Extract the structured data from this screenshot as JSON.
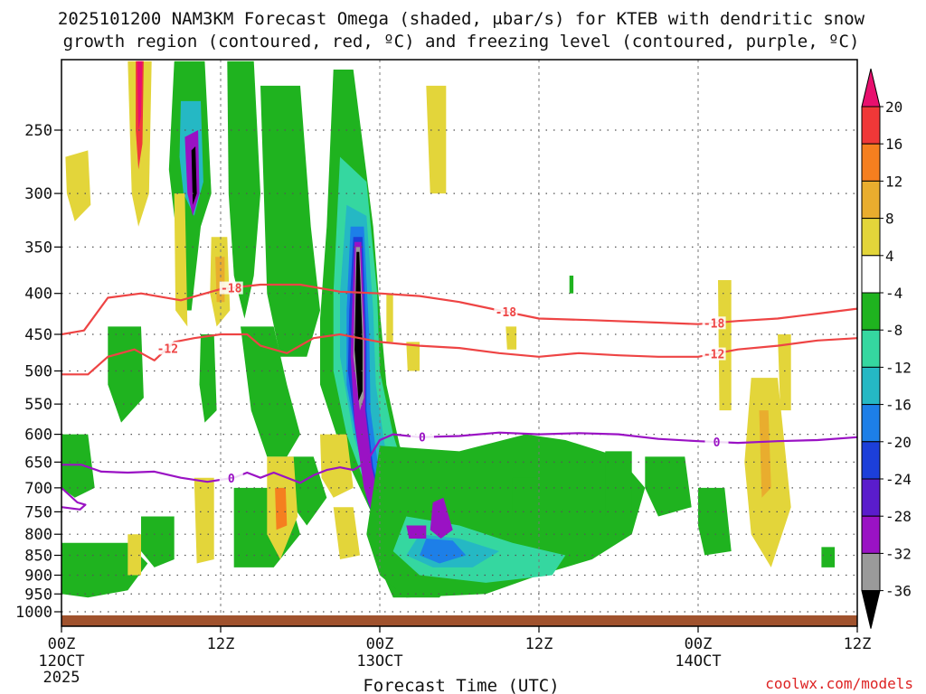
{
  "chart_data": {
    "type": "heatmap",
    "title_line1": "2025101200 NAM3KM Forecast Omega (shaded, μbar/s) for KTEB with dendritic snow",
    "title_line2": "growth region (contoured, red, ºC) and freezing level (contoured, purple, ºC)",
    "xlabel": "Forecast Time (UTC)",
    "ylabel": "",
    "credit": "coolwx.com/models",
    "x_range_hours": [
      0,
      60
    ],
    "x_ticks": [
      {
        "h": 0,
        "l1": "00Z",
        "l2": "12OCT",
        "l3": "2025"
      },
      {
        "h": 12,
        "l1": "12Z",
        "l2": "",
        "l3": ""
      },
      {
        "h": 24,
        "l1": "00Z",
        "l2": "13OCT",
        "l3": ""
      },
      {
        "h": 36,
        "l1": "12Z",
        "l2": "",
        "l3": ""
      },
      {
        "h": 48,
        "l1": "00Z",
        "l2": "14OCT",
        "l3": ""
      },
      {
        "h": 60,
        "l1": "12Z",
        "l2": "",
        "l3": ""
      }
    ],
    "y_ticks_hpa": [
      250,
      300,
      350,
      400,
      450,
      500,
      550,
      600,
      650,
      700,
      750,
      800,
      850,
      900,
      950,
      1000
    ],
    "y_range_hpa": [
      200,
      1025
    ],
    "colorbar": {
      "labels": [
        "20",
        "16",
        "12",
        "8",
        "4",
        "-4",
        "-8",
        "-12",
        "-16",
        "-20",
        "-24",
        "-28",
        "-32",
        "-36"
      ],
      "colors": [
        "#e8106e",
        "#f03838",
        "#f57f1f",
        "#e9ad2e",
        "#e3d53a",
        "#ffffff",
        "#1fb31f",
        "#35d7a0",
        "#25b8c4",
        "#1d7fe8",
        "#1c3fd9",
        "#5a1ccc",
        "#9a12c4",
        "#9a9a9a",
        "#000000"
      ]
    },
    "dgz_contours": [
      {
        "label": "-18",
        "points": [
          [
            0,
            450
          ],
          [
            1.7,
            445
          ],
          [
            3.5,
            405
          ],
          [
            6,
            400
          ],
          [
            9,
            408
          ],
          [
            12,
            395
          ],
          [
            15,
            390
          ],
          [
            18,
            390
          ],
          [
            21,
            398
          ],
          [
            24,
            400
          ],
          [
            27,
            403
          ],
          [
            30,
            410
          ],
          [
            33,
            420
          ],
          [
            36,
            430
          ],
          [
            40,
            432
          ],
          [
            45,
            435
          ],
          [
            48,
            437
          ],
          [
            51,
            433
          ],
          [
            54,
            430
          ],
          [
            57,
            424
          ],
          [
            60,
            418
          ]
        ],
        "labels_at_h": [
          12.8,
          33.5,
          49.2
        ]
      },
      {
        "label": "-12",
        "points": [
          [
            0,
            505
          ],
          [
            2,
            505
          ],
          [
            3.5,
            480
          ],
          [
            5.5,
            470
          ],
          [
            7,
            485
          ],
          [
            8.5,
            460
          ],
          [
            10,
            455
          ],
          [
            12,
            450
          ],
          [
            14,
            450
          ],
          [
            15,
            465
          ],
          [
            17,
            475
          ],
          [
            19,
            455
          ],
          [
            21,
            450
          ],
          [
            24,
            460
          ],
          [
            27,
            465
          ],
          [
            30,
            468
          ],
          [
            33,
            475
          ],
          [
            36,
            480
          ],
          [
            39,
            475
          ],
          [
            42,
            478
          ],
          [
            45,
            480
          ],
          [
            48,
            480
          ],
          [
            51,
            470
          ],
          [
            54,
            465
          ],
          [
            57,
            458
          ],
          [
            60,
            455
          ]
        ],
        "labels_at_h": [
          8,
          49.2
        ]
      }
    ],
    "freezing_contours": [
      {
        "label": "0",
        "points": [
          [
            0,
            655
          ],
          [
            1.5,
            655
          ],
          [
            3,
            668
          ],
          [
            5,
            670
          ],
          [
            7,
            668
          ],
          [
            9,
            680
          ],
          [
            11,
            688
          ],
          [
            13,
            680
          ],
          [
            14,
            670
          ],
          [
            15,
            680
          ],
          [
            16,
            670
          ],
          [
            18,
            690
          ],
          [
            19,
            675
          ],
          [
            20,
            665
          ],
          [
            21,
            660
          ],
          [
            22,
            665
          ],
          [
            23,
            650
          ],
          [
            24,
            610
          ],
          [
            25,
            600
          ],
          [
            27,
            605
          ],
          [
            30,
            603
          ],
          [
            33,
            597
          ],
          [
            36,
            600
          ],
          [
            39,
            598
          ],
          [
            42,
            600
          ],
          [
            45,
            608
          ],
          [
            48,
            612
          ],
          [
            51,
            615
          ],
          [
            54,
            612
          ],
          [
            57,
            610
          ],
          [
            60,
            605
          ]
        ],
        "labels_at_h": [
          12.8,
          27.2,
          49.4
        ]
      },
      {
        "label": "",
        "points": [
          [
            0,
            700
          ],
          [
            1.2,
            730
          ],
          [
            1.8,
            735
          ],
          [
            1.4,
            745
          ],
          [
            0,
            740
          ]
        ],
        "labels_at_h": []
      }
    ]
  }
}
